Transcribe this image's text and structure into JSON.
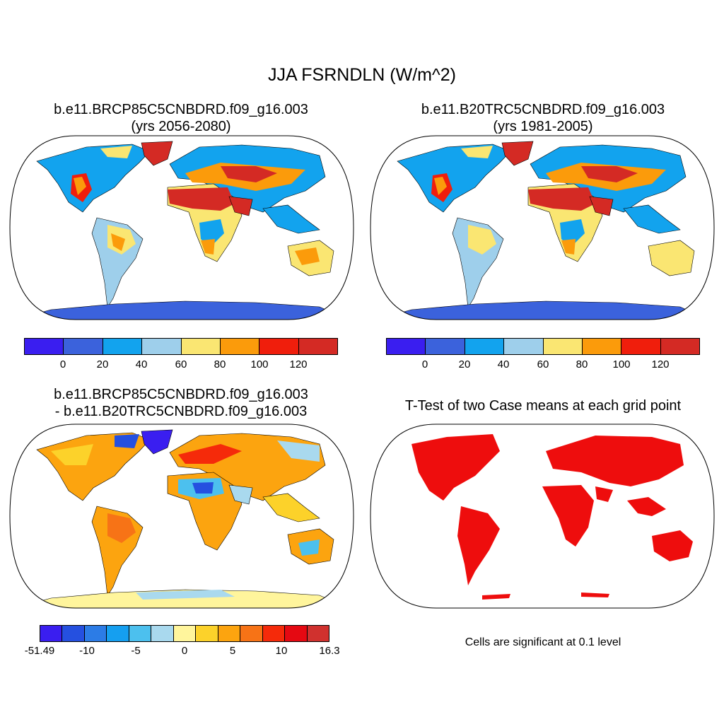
{
  "title": "JJA FSRNDLN (W/m^2)",
  "panels": {
    "tl": {
      "line1": "b.e11.BRCP85C5CNBDRD.f09_g16.003",
      "line2": "(yrs 2056-2080)"
    },
    "tr": {
      "line1": "b.e11.B20TRC5CNBDRD.f09_g16.003",
      "line2": "(yrs 1981-2005)"
    },
    "bl": {
      "line1": "b.e11.BRCP85C5CNBDRD.f09_g16.003",
      "line2": "- b.e11.B20TRC5CNBDRD.f09_g16.003"
    },
    "br": {
      "line1": "T-Test of two Case means at each grid point"
    }
  },
  "colorbar_top": {
    "colors": [
      "#3a1ef0",
      "#3b62dc",
      "#12a3ee",
      "#9ecfeb",
      "#fae672",
      "#fb9b0b",
      "#f01e0c",
      "#d42a24"
    ],
    "ticks": [
      "0",
      "20",
      "40",
      "60",
      "80",
      "100",
      "120"
    ]
  },
  "colorbar_diff": {
    "colors": [
      "#3a1ef0",
      "#2550e0",
      "#2c7ce6",
      "#159ff0",
      "#4cc0ee",
      "#a9d9ee",
      "#fff59c",
      "#fcd22a",
      "#fca40f",
      "#f77316",
      "#f52a0a",
      "#e50912",
      "#d0312e"
    ],
    "ticks": [
      "-51.49",
      "-10",
      "-5",
      "0",
      "5",
      "10",
      "16.3"
    ]
  },
  "ttest_color": "#ee0d0d",
  "significance_note": "Cells are significant at 0.1 level"
}
